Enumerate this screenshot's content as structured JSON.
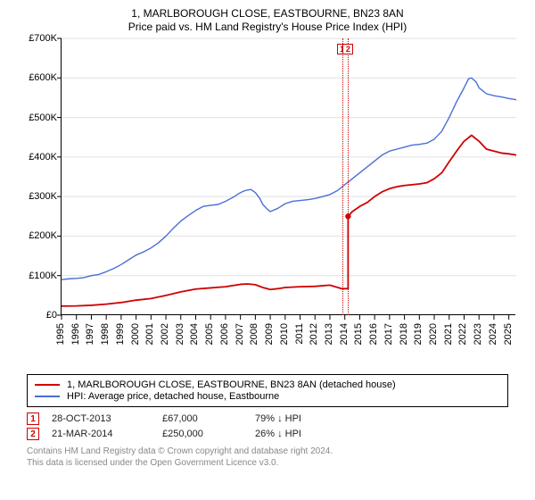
{
  "title_line1": "1, MARLBOROUGH CLOSE, EASTBOURNE, BN23 8AN",
  "title_line2": "Price paid vs. HM Land Registry's House Price Index (HPI)",
  "chart": {
    "type": "line",
    "background_color": "#ffffff",
    "grid_color": "#e0e0e0",
    "axis_color": "#000000",
    "xlim": [
      1995,
      2025.5
    ],
    "ylim": [
      0,
      700000
    ],
    "yticks": [
      0,
      100000,
      200000,
      300000,
      400000,
      500000,
      600000,
      700000
    ],
    "ytick_labels": [
      "£0",
      "£100K",
      "£200K",
      "£300K",
      "£400K",
      "£500K",
      "£600K",
      "£700K"
    ],
    "xticks": [
      1995,
      1996,
      1997,
      1998,
      1999,
      2000,
      2001,
      2002,
      2003,
      2004,
      2005,
      2006,
      2007,
      2008,
      2009,
      2010,
      2011,
      2012,
      2013,
      2014,
      2015,
      2016,
      2017,
      2018,
      2019,
      2020,
      2021,
      2022,
      2023,
      2024,
      2025
    ],
    "xtick_rotation": -90,
    "tick_fontsize": 11,
    "series": {
      "hpi": {
        "label": "HPI: Average price, detached house, Eastbourne",
        "color": "#4a6fd4",
        "width": 1.4,
        "points": [
          [
            1995,
            90000
          ],
          [
            1995.5,
            92000
          ],
          [
            1996,
            93000
          ],
          [
            1996.5,
            95000
          ],
          [
            1997,
            100000
          ],
          [
            1997.5,
            103000
          ],
          [
            1998,
            110000
          ],
          [
            1998.5,
            118000
          ],
          [
            1999,
            128000
          ],
          [
            1999.5,
            140000
          ],
          [
            2000,
            152000
          ],
          [
            2000.5,
            160000
          ],
          [
            2001,
            170000
          ],
          [
            2001.5,
            183000
          ],
          [
            2002,
            200000
          ],
          [
            2002.5,
            220000
          ],
          [
            2003,
            238000
          ],
          [
            2003.5,
            252000
          ],
          [
            2004,
            265000
          ],
          [
            2004.5,
            275000
          ],
          [
            2005,
            278000
          ],
          [
            2005.5,
            280000
          ],
          [
            2006,
            288000
          ],
          [
            2006.5,
            298000
          ],
          [
            2007,
            310000
          ],
          [
            2007.3,
            315000
          ],
          [
            2007.7,
            318000
          ],
          [
            2008,
            310000
          ],
          [
            2008.3,
            295000
          ],
          [
            2008.5,
            280000
          ],
          [
            2008.8,
            268000
          ],
          [
            2009,
            262000
          ],
          [
            2009.5,
            270000
          ],
          [
            2010,
            282000
          ],
          [
            2010.5,
            288000
          ],
          [
            2011,
            290000
          ],
          [
            2011.5,
            292000
          ],
          [
            2012,
            295000
          ],
          [
            2012.5,
            300000
          ],
          [
            2013,
            305000
          ],
          [
            2013.5,
            315000
          ],
          [
            2014,
            330000
          ],
          [
            2014.5,
            345000
          ],
          [
            2015,
            360000
          ],
          [
            2015.5,
            375000
          ],
          [
            2016,
            390000
          ],
          [
            2016.5,
            405000
          ],
          [
            2017,
            415000
          ],
          [
            2017.5,
            420000
          ],
          [
            2018,
            425000
          ],
          [
            2018.5,
            430000
          ],
          [
            2019,
            432000
          ],
          [
            2019.5,
            435000
          ],
          [
            2020,
            445000
          ],
          [
            2020.5,
            465000
          ],
          [
            2021,
            500000
          ],
          [
            2021.5,
            540000
          ],
          [
            2022,
            575000
          ],
          [
            2022.3,
            598000
          ],
          [
            2022.5,
            600000
          ],
          [
            2022.8,
            590000
          ],
          [
            2023,
            575000
          ],
          [
            2023.5,
            560000
          ],
          [
            2024,
            555000
          ],
          [
            2024.5,
            552000
          ],
          [
            2025,
            548000
          ],
          [
            2025.5,
            545000
          ]
        ]
      },
      "price_paid": {
        "label": "1, MARLBOROUGH CLOSE, EASTBOURNE, BN23 8AN (detached house)",
        "color": "#d00000",
        "width": 1.8,
        "points": [
          [
            1995,
            23000
          ],
          [
            1996,
            23500
          ],
          [
            1997,
            25000
          ],
          [
            1998,
            28000
          ],
          [
            1999,
            32000
          ],
          [
            2000,
            38000
          ],
          [
            2001,
            42000
          ],
          [
            2002,
            50000
          ],
          [
            2003,
            59000
          ],
          [
            2004,
            66000
          ],
          [
            2005,
            69000
          ],
          [
            2006,
            72000
          ],
          [
            2007,
            78000
          ],
          [
            2007.5,
            79000
          ],
          [
            2008,
            77000
          ],
          [
            2008.5,
            70000
          ],
          [
            2009,
            65000
          ],
          [
            2009.5,
            67000
          ],
          [
            2010,
            70000
          ],
          [
            2011,
            72000
          ],
          [
            2012,
            73000
          ],
          [
            2013,
            76000
          ],
          [
            2013.8,
            67000
          ],
          [
            2014.22,
            250000
          ],
          [
            2014.5,
            262000
          ],
          [
            2015,
            275000
          ],
          [
            2015.5,
            285000
          ],
          [
            2016,
            300000
          ],
          [
            2016.5,
            312000
          ],
          [
            2017,
            320000
          ],
          [
            2017.5,
            325000
          ],
          [
            2018,
            328000
          ],
          [
            2018.5,
            330000
          ],
          [
            2019,
            332000
          ],
          [
            2019.5,
            335000
          ],
          [
            2020,
            345000
          ],
          [
            2020.5,
            360000
          ],
          [
            2021,
            388000
          ],
          [
            2021.5,
            415000
          ],
          [
            2022,
            440000
          ],
          [
            2022.5,
            455000
          ],
          [
            2023,
            440000
          ],
          [
            2023.5,
            420000
          ],
          [
            2024,
            415000
          ],
          [
            2024.5,
            410000
          ],
          [
            2025,
            408000
          ],
          [
            2025.5,
            405000
          ]
        ]
      }
    },
    "markers": [
      {
        "n": "1",
        "x": 2013.82,
        "color": "#d00000"
      },
      {
        "n": "2",
        "x": 2014.22,
        "color": "#d00000"
      }
    ]
  },
  "legend": {
    "border_color": "#000000",
    "items": [
      {
        "color": "#d00000",
        "label": "1, MARLBOROUGH CLOSE, EASTBOURNE, BN23 8AN (detached house)"
      },
      {
        "color": "#4a6fd4",
        "label": "HPI: Average price, detached house, Eastbourne"
      }
    ]
  },
  "transactions": [
    {
      "n": "1",
      "color": "#d00000",
      "date": "28-OCT-2013",
      "price": "£67,000",
      "delta": "79% ↓ HPI"
    },
    {
      "n": "2",
      "color": "#d00000",
      "date": "21-MAR-2014",
      "price": "£250,000",
      "delta": "26% ↓ HPI"
    }
  ],
  "footer_line1": "Contains HM Land Registry data © Crown copyright and database right 2024.",
  "footer_line2": "This data is licensed under the Open Government Licence v3.0."
}
